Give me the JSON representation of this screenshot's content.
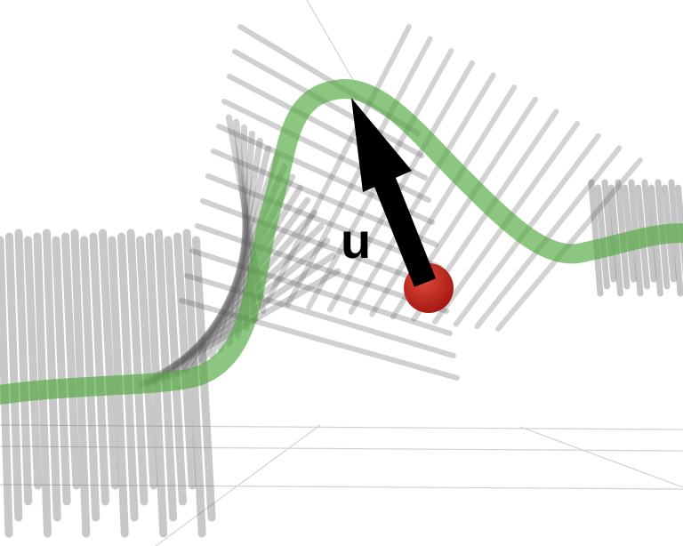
{
  "diagram": {
    "vector_label": "u",
    "colors": {
      "background": "#ffffff",
      "curve": "#4fa83d",
      "blades": "#555555",
      "arrow": "#000000",
      "point": "#c0261c",
      "grid": "#cfcfcf"
    }
  }
}
